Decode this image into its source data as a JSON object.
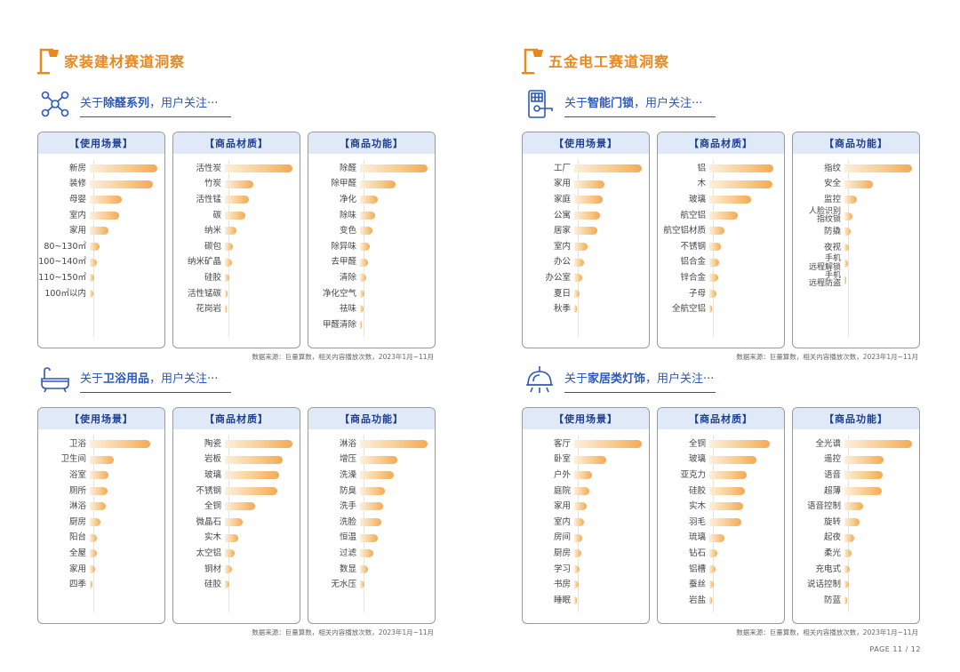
{
  "page_label": "PAGE 11 / 12",
  "source_note": "数据来源：巨量算数，相关内容播放次数，2023年1月~11月",
  "halves": [
    {
      "section_title": "家装建材赛道洞察",
      "panels": [
        {
          "prefix": "关于",
          "topic": "除醛系列",
          "suffix": "，用户关注···",
          "icon": "molecule-icon",
          "boxes": [
            {
              "title": "【使用场景】",
              "items": [
                {
                  "label": "新房",
                  "value": 1.0
                },
                {
                  "label": "装修",
                  "value": 0.93
                },
                {
                  "label": "母婴",
                  "value": 0.48
                },
                {
                  "label": "室内",
                  "value": 0.44
                },
                {
                  "label": "家用",
                  "value": 0.28
                },
                {
                  "label": "80~130㎡",
                  "value": 0.14
                },
                {
                  "label": "100~140㎡",
                  "value": 0.1
                },
                {
                  "label": "110~150㎡",
                  "value": 0.07
                },
                {
                  "label": "100㎡以内",
                  "value": 0.05
                }
              ]
            },
            {
              "title": "【商品材质】",
              "items": [
                {
                  "label": "活性炭",
                  "value": 1.0
                },
                {
                  "label": "竹炭",
                  "value": 0.42
                },
                {
                  "label": "活性锰",
                  "value": 0.36
                },
                {
                  "label": "碳",
                  "value": 0.3
                },
                {
                  "label": "纳米",
                  "value": 0.17
                },
                {
                  "label": "碳包",
                  "value": 0.12
                },
                {
                  "label": "纳米矿晶",
                  "value": 0.1
                },
                {
                  "label": "硅胶",
                  "value": 0.06
                },
                {
                  "label": "活性锰碳",
                  "value": 0.04
                },
                {
                  "label": "花岗岩",
                  "value": 0.02
                }
              ]
            },
            {
              "title": "【商品功能】",
              "items": [
                {
                  "label": "除醛",
                  "value": 1.0
                },
                {
                  "label": "除甲醛",
                  "value": 0.52
                },
                {
                  "label": "净化",
                  "value": 0.26
                },
                {
                  "label": "除味",
                  "value": 0.22
                },
                {
                  "label": "变色",
                  "value": 0.18
                },
                {
                  "label": "除异味",
                  "value": 0.15
                },
                {
                  "label": "去甲醛",
                  "value": 0.12
                },
                {
                  "label": "清除",
                  "value": 0.09
                },
                {
                  "label": "净化空气",
                  "value": 0.07
                },
                {
                  "label": "祛味",
                  "value": 0.05
                },
                {
                  "label": "甲醛清除",
                  "value": 0.03
                }
              ]
            }
          ]
        },
        {
          "prefix": "关于",
          "topic": "卫浴用品",
          "suffix": "，用户关注···",
          "icon": "bathtub-icon",
          "boxes": [
            {
              "title": "【使用场景】",
              "items": [
                {
                  "label": "卫浴",
                  "value": 0.9
                },
                {
                  "label": "卫生间",
                  "value": 0.36
                },
                {
                  "label": "浴室",
                  "value": 0.28
                },
                {
                  "label": "厕所",
                  "value": 0.26
                },
                {
                  "label": "淋浴",
                  "value": 0.24
                },
                {
                  "label": "厨房",
                  "value": 0.16
                },
                {
                  "label": "阳台",
                  "value": 0.11
                },
                {
                  "label": "全屋",
                  "value": 0.1
                },
                {
                  "label": "家用",
                  "value": 0.08
                },
                {
                  "label": "四季",
                  "value": 0.04
                }
              ]
            },
            {
              "title": "【商品材质】",
              "items": [
                {
                  "label": "陶瓷",
                  "value": 1.0
                },
                {
                  "label": "岩板",
                  "value": 0.85
                },
                {
                  "label": "玻璃",
                  "value": 0.8
                },
                {
                  "label": "不锈钢",
                  "value": 0.78
                },
                {
                  "label": "全铜",
                  "value": 0.45
                },
                {
                  "label": "微晶石",
                  "value": 0.26
                },
                {
                  "label": "实木",
                  "value": 0.2
                },
                {
                  "label": "太空铝",
                  "value": 0.15
                },
                {
                  "label": "铜材",
                  "value": 0.1
                },
                {
                  "label": "硅胶",
                  "value": 0.06
                }
              ]
            },
            {
              "title": "【商品功能】",
              "items": [
                {
                  "label": "淋浴",
                  "value": 1.0
                },
                {
                  "label": "增压",
                  "value": 0.55
                },
                {
                  "label": "洗澡",
                  "value": 0.5
                },
                {
                  "label": "防臭",
                  "value": 0.37
                },
                {
                  "label": "洗手",
                  "value": 0.34
                },
                {
                  "label": "洗脸",
                  "value": 0.32
                },
                {
                  "label": "恒温",
                  "value": 0.26
                },
                {
                  "label": "过滤",
                  "value": 0.2
                },
                {
                  "label": "数显",
                  "value": 0.12
                },
                {
                  "label": "无水压",
                  "value": 0.06
                }
              ]
            }
          ]
        }
      ]
    },
    {
      "section_title": "五金电工赛道洞察",
      "panels": [
        {
          "prefix": "关于",
          "topic": "智能门锁",
          "suffix": "，用户关注···",
          "icon": "smart-lock-icon",
          "boxes": [
            {
              "title": "【使用场景】",
              "items": [
                {
                  "label": "工厂",
                  "value": 1.0
                },
                {
                  "label": "家用",
                  "value": 0.45
                },
                {
                  "label": "家庭",
                  "value": 0.42
                },
                {
                  "label": "公寓",
                  "value": 0.38
                },
                {
                  "label": "居家",
                  "value": 0.34
                },
                {
                  "label": "室内",
                  "value": 0.2
                },
                {
                  "label": "办公",
                  "value": 0.14
                },
                {
                  "label": "办公室",
                  "value": 0.12
                },
                {
                  "label": "夏日",
                  "value": 0.08
                },
                {
                  "label": "秋季",
                  "value": 0.04
                }
              ]
            },
            {
              "title": "【商品材质】",
              "items": [
                {
                  "label": "铝",
                  "value": 0.95
                },
                {
                  "label": "木",
                  "value": 0.93
                },
                {
                  "label": "玻璃",
                  "value": 0.62
                },
                {
                  "label": "航空铝",
                  "value": 0.42
                },
                {
                  "label": "航空铝材质",
                  "value": 0.22
                },
                {
                  "label": "不锈钢",
                  "value": 0.17
                },
                {
                  "label": "铝合金",
                  "value": 0.15
                },
                {
                  "label": "锌合金",
                  "value": 0.13
                },
                {
                  "label": "子母",
                  "value": 0.1
                },
                {
                  "label": "全航空铝",
                  "value": 0.04
                }
              ]
            },
            {
              "title": "【商品功能】",
              "items": [
                {
                  "label": "指纹",
                  "value": 1.0
                },
                {
                  "label": "安全",
                  "value": 0.42
                },
                {
                  "label": "监控",
                  "value": 0.18
                },
                {
                  "label": "人脸识别\n指纹锁",
                  "value": 0.12
                },
                {
                  "label": "防撬",
                  "value": 0.09
                },
                {
                  "label": "夜视",
                  "value": 0.07
                },
                {
                  "label": "手机\n远程解锁",
                  "value": 0.05
                },
                {
                  "label": "手机\n远程防盗",
                  "value": 0.03
                }
              ]
            }
          ]
        },
        {
          "prefix": "关于",
          "topic": "家居类灯饰",
          "suffix": "，用户关注···",
          "icon": "chandelier-icon",
          "boxes": [
            {
              "title": "【使用场景】",
              "items": [
                {
                  "label": "客厅",
                  "value": 1.0
                },
                {
                  "label": "卧室",
                  "value": 0.48
                },
                {
                  "label": "户外",
                  "value": 0.26
                },
                {
                  "label": "庭院",
                  "value": 0.22
                },
                {
                  "label": "家用",
                  "value": 0.18
                },
                {
                  "label": "室内",
                  "value": 0.15
                },
                {
                  "label": "房间",
                  "value": 0.12
                },
                {
                  "label": "厨房",
                  "value": 0.1
                },
                {
                  "label": "学习",
                  "value": 0.08
                },
                {
                  "label": "书房",
                  "value": 0.06
                },
                {
                  "label": "睡眠",
                  "value": 0.04
                }
              ]
            },
            {
              "title": "【商品材质】",
              "items": [
                {
                  "label": "全铜",
                  "value": 0.9
                },
                {
                  "label": "玻璃",
                  "value": 0.7
                },
                {
                  "label": "亚克力",
                  "value": 0.55
                },
                {
                  "label": "硅胶",
                  "value": 0.52
                },
                {
                  "label": "实木",
                  "value": 0.5
                },
                {
                  "label": "羽毛",
                  "value": 0.48
                },
                {
                  "label": "琉璃",
                  "value": 0.22
                },
                {
                  "label": "钻石",
                  "value": 0.12
                },
                {
                  "label": "铝槽",
                  "value": 0.09
                },
                {
                  "label": "蚕丝",
                  "value": 0.07
                },
                {
                  "label": "岩盐",
                  "value": 0.04
                }
              ]
            },
            {
              "title": "【商品功能】",
              "items": [
                {
                  "label": "全光谱",
                  "value": 1.0
                },
                {
                  "label": "遥控",
                  "value": 0.58
                },
                {
                  "label": "语音",
                  "value": 0.56
                },
                {
                  "label": "超薄",
                  "value": 0.55
                },
                {
                  "label": "语音控制",
                  "value": 0.28
                },
                {
                  "label": "旋转",
                  "value": 0.23
                },
                {
                  "label": "起夜",
                  "value": 0.15
                },
                {
                  "label": "柔光",
                  "value": 0.11
                },
                {
                  "label": "充电式",
                  "value": 0.08
                },
                {
                  "label": "说话控制",
                  "value": 0.06
                },
                {
                  "label": "防蓝",
                  "value": 0.04
                }
              ]
            }
          ]
        }
      ]
    }
  ],
  "colors": {
    "accent": "#e8891f",
    "title_blue": "#2c59b8",
    "header_fill": "#dfe9f8",
    "bar": "#f4a953"
  }
}
